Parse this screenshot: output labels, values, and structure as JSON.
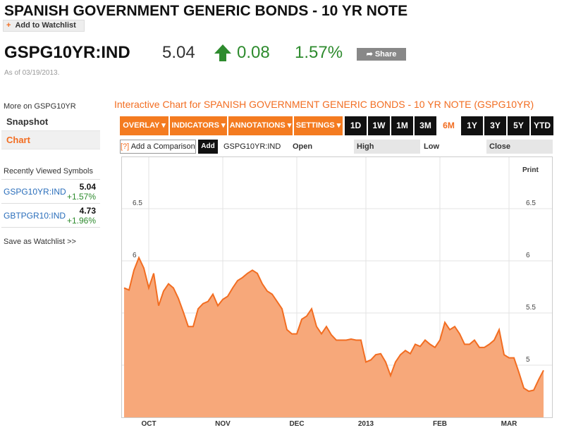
{
  "header": {
    "title": "SPANISH GOVERNMENT GENERIC BONDS - 10 YR NOTE",
    "watchlist_button": "Add to Watchlist",
    "ticker": "GSPG10YR:IND",
    "price": "5.04",
    "change": "0.08",
    "change_percent": "1.57%",
    "share_button": "Share",
    "as_of": "As of 03/19/2013."
  },
  "sidebar": {
    "more_on": "More on GSPG10YR",
    "links": [
      "Snapshot",
      "Chart"
    ],
    "active_link": "Chart",
    "recent_title": "Recently Viewed Symbols",
    "recent": [
      {
        "symbol": "GSPG10YR:IND",
        "price": "5.04",
        "change": "+1.57%"
      },
      {
        "symbol": "GBTPGR10:IND",
        "price": "4.73",
        "change": "+1.96%"
      }
    ],
    "save": "Save as Watchlist >>"
  },
  "toolbar": {
    "heading": "Interactive Chart for SPANISH GOVERNMENT GENERIC BONDS - 10 YR NOTE (GSPG10YR)",
    "menus": [
      "OVERLAY ▾",
      "INDICATORS ▾",
      "ANNOTATIONS ▾",
      "SETTINGS ▾"
    ],
    "ranges": [
      "1D",
      "1W",
      "1M",
      "3M",
      "6M",
      "1Y",
      "3Y",
      "5Y",
      "YTD"
    ],
    "active_range": "6M",
    "help": "[?]",
    "compare": "Add a Comparison",
    "add": "Add",
    "symbol": "GSPG10YR:IND",
    "fields": [
      "Open",
      "High",
      "Low",
      "Close"
    ],
    "print": "Print"
  },
  "chart_data": {
    "type": "area",
    "color": "#f26d21",
    "fill": "#f7a87a",
    "grid": true,
    "categories": [
      null,
      null,
      null,
      null,
      null,
      "OCT",
      null,
      null,
      null,
      null,
      null,
      null,
      null,
      null,
      null,
      null,
      null,
      null,
      null,
      null,
      "NOV",
      null,
      null,
      null,
      null,
      null,
      null,
      null,
      null,
      null,
      null,
      null,
      null,
      null,
      null,
      "DEC",
      null,
      null,
      null,
      null,
      null,
      null,
      null,
      null,
      null,
      null,
      null,
      null,
      null,
      "2013",
      null,
      null,
      null,
      null,
      null,
      null,
      null,
      null,
      null,
      null,
      null,
      null,
      null,
      null,
      "FEB",
      null,
      null,
      null,
      null,
      null,
      null,
      null,
      null,
      null,
      null,
      null,
      null,
      null,
      "MAR",
      null,
      null,
      null,
      null,
      null,
      null,
      null
    ],
    "values": [
      5.74,
      5.72,
      5.91,
      6.03,
      5.93,
      5.74,
      5.88,
      5.57,
      5.71,
      5.78,
      5.74,
      5.64,
      5.51,
      5.37,
      5.37,
      5.54,
      5.59,
      5.61,
      5.68,
      5.57,
      5.63,
      5.66,
      5.74,
      5.81,
      5.84,
      5.88,
      5.91,
      5.88,
      5.78,
      5.71,
      5.68,
      5.61,
      5.54,
      5.34,
      5.3,
      5.3,
      5.44,
      5.47,
      5.54,
      5.37,
      5.3,
      5.37,
      5.29,
      5.24,
      5.24,
      5.24,
      5.25,
      5.24,
      5.24,
      5.03,
      5.05,
      5.1,
      5.11,
      5.03,
      4.9,
      5.03,
      5.1,
      5.14,
      5.11,
      5.2,
      5.18,
      5.24,
      5.2,
      5.17,
      5.24,
      5.41,
      5.34,
      5.37,
      5.3,
      5.2,
      5.2,
      5.24,
      5.17,
      5.17,
      5.2,
      5.24,
      5.34,
      5.1,
      5.07,
      5.07,
      4.93,
      4.78,
      4.75,
      4.76,
      4.86,
      4.95
    ],
    "ylim": [
      4.5,
      7.0
    ],
    "yticks": [
      5,
      5.5,
      6,
      6.5
    ]
  }
}
